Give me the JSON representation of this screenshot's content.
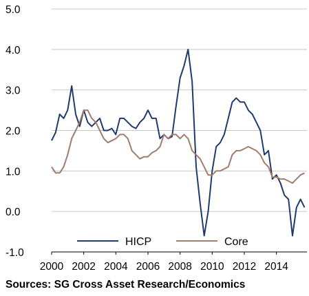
{
  "chart_data": {
    "type": "line",
    "xlim": [
      2000,
      2015.9
    ],
    "ylim": [
      -1.0,
      5.0
    ],
    "yticks": [
      "5.0",
      "4.0",
      "3.0",
      "2.0",
      "1.0",
      "0.0",
      "-1.0"
    ],
    "xticks": [
      "2000",
      "2002",
      "2004",
      "2006",
      "2008",
      "2010",
      "2012",
      "2014"
    ],
    "grid": "horizontal",
    "legend_position": "bottom",
    "series": [
      {
        "name": "HICP",
        "color": "#1f3a6e",
        "x": [
          2000.0,
          2000.25,
          2000.5,
          2000.75,
          2001.0,
          2001.25,
          2001.5,
          2001.75,
          2002.0,
          2002.25,
          2002.5,
          2002.75,
          2003.0,
          2003.25,
          2003.5,
          2003.75,
          2004.0,
          2004.25,
          2004.5,
          2004.75,
          2005.0,
          2005.25,
          2005.5,
          2005.75,
          2006.0,
          2006.25,
          2006.5,
          2006.75,
          2007.0,
          2007.25,
          2007.5,
          2007.75,
          2008.0,
          2008.25,
          2008.5,
          2008.75,
          2009.0,
          2009.25,
          2009.5,
          2009.75,
          2010.0,
          2010.25,
          2010.5,
          2010.75,
          2011.0,
          2011.25,
          2011.5,
          2011.75,
          2012.0,
          2012.25,
          2012.5,
          2012.75,
          2013.0,
          2013.25,
          2013.5,
          2013.75,
          2014.0,
          2014.25,
          2014.5,
          2014.75,
          2015.0,
          2015.25,
          2015.5,
          2015.75
        ],
        "values": [
          1.75,
          1.95,
          2.4,
          2.3,
          2.5,
          3.1,
          2.4,
          2.1,
          2.5,
          2.2,
          2.1,
          2.2,
          2.3,
          2.0,
          2.0,
          2.05,
          1.9,
          2.3,
          2.3,
          2.2,
          2.1,
          2.05,
          2.2,
          2.3,
          2.5,
          2.3,
          2.3,
          1.8,
          1.9,
          1.8,
          1.85,
          2.6,
          3.3,
          3.6,
          4.0,
          3.2,
          1.1,
          0.2,
          -0.6,
          0.0,
          1.0,
          1.6,
          1.7,
          1.9,
          2.3,
          2.7,
          2.8,
          2.7,
          2.7,
          2.5,
          2.4,
          2.2,
          2.0,
          1.4,
          1.5,
          0.8,
          0.9,
          0.7,
          0.4,
          0.3,
          -0.6,
          0.1,
          0.3,
          0.1
        ]
      },
      {
        "name": "Core",
        "color": "#a07c6c",
        "x": [
          2000.0,
          2000.25,
          2000.5,
          2000.75,
          2001.0,
          2001.25,
          2001.5,
          2001.75,
          2002.0,
          2002.25,
          2002.5,
          2002.75,
          2003.0,
          2003.25,
          2003.5,
          2003.75,
          2004.0,
          2004.25,
          2004.5,
          2004.75,
          2005.0,
          2005.25,
          2005.5,
          2005.75,
          2006.0,
          2006.25,
          2006.5,
          2006.75,
          2007.0,
          2007.25,
          2007.5,
          2007.75,
          2008.0,
          2008.25,
          2008.5,
          2008.75,
          2009.0,
          2009.25,
          2009.5,
          2009.75,
          2010.0,
          2010.25,
          2010.5,
          2010.75,
          2011.0,
          2011.25,
          2011.5,
          2011.75,
          2012.0,
          2012.25,
          2012.5,
          2012.75,
          2013.0,
          2013.25,
          2013.5,
          2013.75,
          2014.0,
          2014.25,
          2014.5,
          2014.75,
          2015.0,
          2015.25,
          2015.5,
          2015.75
        ],
        "values": [
          1.1,
          0.95,
          0.95,
          1.1,
          1.4,
          1.8,
          2.0,
          2.2,
          2.5,
          2.5,
          2.3,
          2.2,
          2.0,
          1.8,
          1.7,
          1.75,
          1.8,
          1.9,
          1.9,
          1.8,
          1.5,
          1.4,
          1.3,
          1.35,
          1.35,
          1.45,
          1.5,
          1.6,
          1.9,
          1.8,
          1.9,
          1.9,
          1.8,
          1.9,
          1.8,
          1.5,
          1.4,
          1.3,
          1.1,
          0.9,
          0.9,
          1.0,
          1.0,
          1.05,
          1.1,
          1.4,
          1.5,
          1.5,
          1.55,
          1.6,
          1.55,
          1.5,
          1.4,
          1.2,
          1.1,
          0.85,
          0.85,
          0.8,
          0.8,
          0.75,
          0.7,
          0.8,
          0.9,
          0.95
        ]
      }
    ]
  },
  "source_text": "Sources: SG Cross Asset Research/Economics"
}
